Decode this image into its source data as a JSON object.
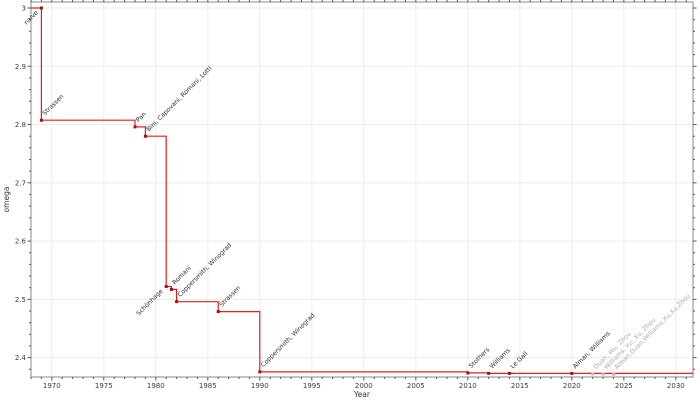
{
  "figure": {
    "background": "#ffffff",
    "line_color": "#e51e1e",
    "marker_color": "#a40f0f",
    "pending_marker_color": "#f0a6a6",
    "annotation_color": "#2f2f2f",
    "pending_annotation_color": "#ababab",
    "grid_color": "#ececec",
    "spine_color": "#8a8a8a",
    "tick_color": "#555555",
    "tick_label_color": "#3a3a3a",
    "axis_title_color": "#333333"
  },
  "chart_data": {
    "type": "line",
    "subtype": "step-after",
    "title": "",
    "xlabel": "Year",
    "ylabel": "omega",
    "grid": true,
    "legend": "none",
    "xlim": [
      1968.0,
      2031.65
    ],
    "ylim": [
      2.3667,
      3.0103
    ],
    "x_major_ticks": [
      1970,
      1975,
      1980,
      1985,
      1990,
      1995,
      2000,
      2005,
      2010,
      2015,
      2020,
      2025,
      2030
    ],
    "x_tick_labels": [
      "1970",
      "1975",
      "1980",
      "1985",
      "1990",
      "1995",
      "2000",
      "2005",
      "2010",
      "2015",
      "2020",
      "2025",
      "2030"
    ],
    "x_minor_step": 1,
    "y_major_ticks": [
      2.4,
      2.5,
      2.6,
      2.7,
      2.8,
      2.9,
      3.0
    ],
    "y_tick_labels": [
      "2.4",
      "2.5",
      "2.6",
      "2.7",
      "2.8",
      "2.9",
      "3"
    ],
    "y_minor_step": 0.02,
    "points": [
      {
        "year": 1969,
        "omega": 3.0,
        "label": "naive",
        "label_anchor": "end",
        "confirmed": true
      },
      {
        "year": 1969,
        "omega": 2.8074,
        "label": "Strassen",
        "label_anchor": "start",
        "confirmed": true
      },
      {
        "year": 1978,
        "omega": 2.796,
        "label": "Pan",
        "label_anchor": "start",
        "confirmed": true
      },
      {
        "year": 1979,
        "omega": 2.7799,
        "label": "Bini, Capovani, Romani, Lotti",
        "label_anchor": "start",
        "confirmed": true
      },
      {
        "year": 1981,
        "omega": 2.522,
        "label": "Schönhage",
        "label_anchor": "end",
        "confirmed": true
      },
      {
        "year": 1981.5,
        "omega": 2.517,
        "label": "Romani",
        "label_anchor": "start",
        "confirmed": true
      },
      {
        "year": 1982,
        "omega": 2.496,
        "label": "Coppersmith, Winograd",
        "label_anchor": "start",
        "confirmed": true
      },
      {
        "year": 1986,
        "omega": 2.479,
        "label": "Strassen",
        "label_anchor": "start",
        "confirmed": true
      },
      {
        "year": 1990,
        "omega": 2.3755,
        "label": "Coppersmith, Winograd",
        "label_anchor": "start",
        "confirmed": true
      },
      {
        "year": 2010,
        "omega": 2.3737,
        "label": "Stothers",
        "label_anchor": "start",
        "confirmed": true
      },
      {
        "year": 2012,
        "omega": 2.3729,
        "label": "Williams",
        "label_anchor": "start",
        "confirmed": true
      },
      {
        "year": 2014,
        "omega": 2.3728639,
        "label": "Le Gall",
        "label_anchor": "start",
        "confirmed": true
      },
      {
        "year": 2020,
        "omega": 2.3728596,
        "label": "Alman, Williams",
        "label_anchor": "start",
        "confirmed": true
      },
      {
        "year": 2022,
        "omega": 2.371866,
        "label": "Duan, Wu, Zhou",
        "label_anchor": "start",
        "confirmed": false
      },
      {
        "year": 2023,
        "omega": 2.371552,
        "label": "Williams, Xu, Xu, Zhou",
        "label_anchor": "start",
        "confirmed": false
      },
      {
        "year": 2024,
        "omega": 2.371339,
        "label": "Alman,Duan,Williams,Xu,Xu,Zhou",
        "label_anchor": "start",
        "confirmed": false
      }
    ]
  }
}
